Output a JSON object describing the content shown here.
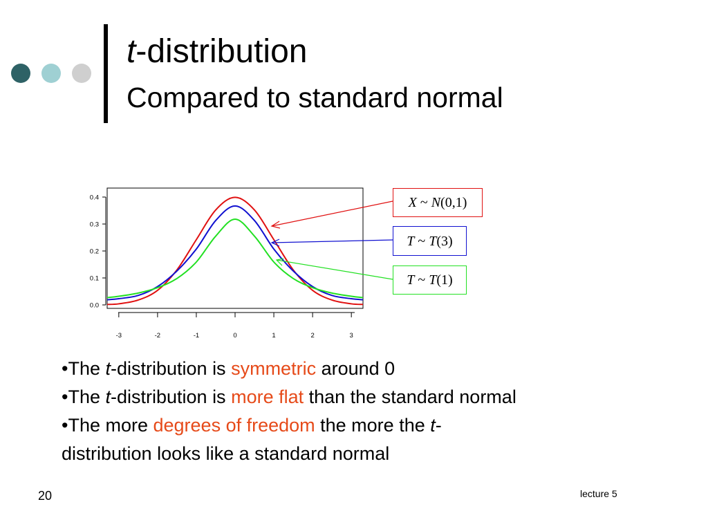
{
  "decoration": {
    "dot_colors": [
      "#2e6266",
      "#9fd0d3",
      "#cfcfcf"
    ]
  },
  "slide": {
    "title_italic": "t",
    "title_rest": "-distribution",
    "subtitle": "Compared to standard normal"
  },
  "chart_data": {
    "type": "line",
    "xlim": [
      -3.3,
      3.3
    ],
    "ylim": [
      0,
      0.4
    ],
    "x_ticks": [
      "-3",
      "-2",
      "-1",
      "0",
      "1",
      "2",
      "3"
    ],
    "y_ticks": [
      "0.0",
      "0.1",
      "0.2",
      "0.3",
      "0.4"
    ],
    "series": [
      {
        "name": "X ~ N(0,1)",
        "color": "#e01010",
        "x": [
          -3.3,
          -3,
          -2.5,
          -2,
          -1.5,
          -1,
          -0.5,
          0,
          0.5,
          1,
          1.5,
          2,
          2.5,
          3,
          3.3
        ],
        "values": [
          0.002,
          0.004,
          0.018,
          0.054,
          0.13,
          0.242,
          0.352,
          0.399,
          0.352,
          0.242,
          0.13,
          0.054,
          0.018,
          0.004,
          0.002
        ]
      },
      {
        "name": "T ~ T(3)",
        "color": "#1010d0",
        "x": [
          -3.3,
          -3,
          -2.5,
          -2,
          -1.5,
          -1,
          -0.5,
          0,
          0.5,
          1,
          1.5,
          2,
          2.5,
          3,
          3.3
        ],
        "values": [
          0.019,
          0.023,
          0.035,
          0.068,
          0.126,
          0.207,
          0.313,
          0.367,
          0.313,
          0.207,
          0.126,
          0.068,
          0.035,
          0.023,
          0.019
        ]
      },
      {
        "name": "T ~ T(1)",
        "color": "#22e022",
        "x": [
          -3.3,
          -3,
          -2.5,
          -2,
          -1.5,
          -1,
          -0.5,
          0,
          0.5,
          1,
          1.5,
          2,
          2.5,
          3,
          3.3
        ],
        "values": [
          0.027,
          0.032,
          0.044,
          0.064,
          0.098,
          0.159,
          0.255,
          0.318,
          0.255,
          0.159,
          0.098,
          0.064,
          0.044,
          0.032,
          0.027
        ]
      }
    ]
  },
  "labels": {
    "normal": {
      "italic1": "X",
      "mid": " ~ ",
      "italic2": "N",
      "rest": "(0,1)",
      "color": "#e01010"
    },
    "t3": {
      "italic1": "T",
      "mid": " ~ ",
      "italic2": "T",
      "rest": "(3)",
      "color": "#1010d0"
    },
    "t1": {
      "italic1": "T",
      "mid": " ~ ",
      "italic2": "T",
      "rest": "(1)",
      "color": "#22e022"
    }
  },
  "bullets": {
    "highlight_color": "#e64a19",
    "b1": {
      "pre": "•The ",
      "t": "t",
      "mid": "-distribution is ",
      "hl": "symmetric",
      "post": " around 0"
    },
    "b2": {
      "pre": "•The ",
      "t": "t",
      "mid": "-distribution is ",
      "hl": "more flat",
      "post": " than the standard normal"
    },
    "b3": {
      "pre": "•The more ",
      "hl": "degrees of freedom",
      "mid": " the more the ",
      "t": "t",
      "post": "-",
      "line2": "distribution looks like a standard normal"
    }
  },
  "footer": {
    "page_number": "20",
    "text": "lecture 5"
  }
}
